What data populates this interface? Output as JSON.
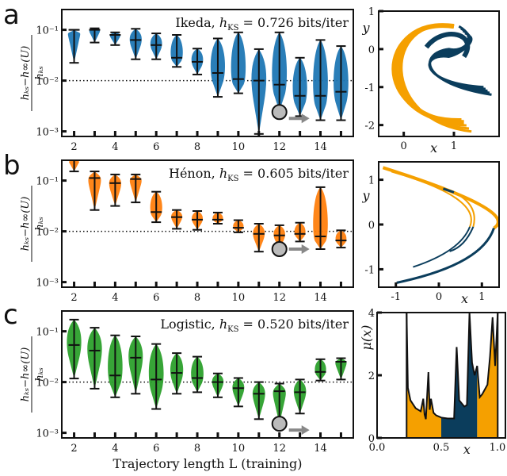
{
  "figure": {
    "panels": [
      "a",
      "b",
      "c"
    ],
    "colors": {
      "ikeda": "#1f77b4",
      "henon": "#ff7f0e",
      "logistic": "#2ca02c",
      "orange_region": "#f5a000",
      "navy_region": "#0b3d5c",
      "marker_gray": "#bbbbbb",
      "arrow_gray": "#888888"
    },
    "shared_xlabel": "Trajectory length L (training)",
    "ylabel": "(h_KS − h_∞(U)) / h_KS",
    "reference_line": 0.01,
    "highlighted_L": 12
  },
  "chart_data": [
    {
      "type": "violin",
      "panel": "a",
      "system": "Ikeda",
      "annotation_prefix": "Ikeda, ",
      "hks_label": "h",
      "hks_sub": "KS",
      "annotation_value": " = 0.726 bits/iter",
      "xlabel": "",
      "ylabel": "(h_KS − h_∞(U)) / h_KS",
      "yscale": "log",
      "ylim_log10": [
        -3.1,
        -0.6
      ],
      "yticks": [
        "10⁻³",
        "10⁻²",
        "10⁻¹"
      ],
      "xticks": [
        "2",
        "4",
        "6",
        "8",
        "10",
        "12",
        "14"
      ],
      "x": [
        2,
        3,
        4,
        5,
        6,
        7,
        8,
        9,
        10,
        11,
        12,
        13,
        14,
        15
      ],
      "median_log10": [
        -1.0,
        -1.0,
        -1.1,
        -1.2,
        -1.3,
        -1.55,
        -1.63,
        -1.85,
        -1.97,
        -2.0,
        -2.08,
        -2.3,
        -2.3,
        -2.22
      ],
      "min_log10": [
        -1.65,
        -1.25,
        -1.3,
        -1.58,
        -1.58,
        -1.73,
        -1.88,
        -2.32,
        -2.25,
        -3.05,
        -2.6,
        -2.7,
        -2.78,
        -2.78
      ],
      "max_log10": [
        -1.0,
        -0.97,
        -1.05,
        -0.98,
        -1.07,
        -1.1,
        -1.37,
        -1.17,
        -1.05,
        -1.38,
        -1.05,
        -1.55,
        -1.2,
        -1.32
      ],
      "highlight_log10": -2.62
    },
    {
      "type": "violin",
      "panel": "b",
      "system": "Hénon",
      "annotation_prefix": "Hénon, ",
      "hks_label": "h",
      "hks_sub": "KS",
      "annotation_value": " = 0.605 bits/iter",
      "xlabel": "",
      "ylabel": "(h_KS − h_∞(U)) / h_KS",
      "yscale": "log",
      "ylim_log10": [
        -3.1,
        -0.6
      ],
      "yticks": [
        "10⁻³",
        "10⁻²",
        "10⁻¹"
      ],
      "xticks": [
        "2",
        "4",
        "6",
        "8",
        "10",
        "12",
        "14"
      ],
      "x": [
        2,
        3,
        4,
        5,
        6,
        7,
        8,
        9,
        10,
        11,
        12,
        13,
        14,
        15
      ],
      "median_log10": [
        -0.6,
        -0.95,
        -1.05,
        -0.97,
        -1.62,
        -1.72,
        -1.77,
        -1.77,
        -1.93,
        -2.05,
        -2.08,
        -2.05,
        -2.1,
        -2.18
      ],
      "min_log10": [
        -0.82,
        -1.58,
        -1.5,
        -1.43,
        -1.82,
        -1.95,
        -1.97,
        -1.85,
        -2.02,
        -2.4,
        -2.35,
        -2.2,
        -2.35,
        -2.32
      ],
      "max_log10": [
        -0.6,
        -0.82,
        -0.88,
        -0.88,
        -1.22,
        -1.58,
        -1.6,
        -1.63,
        -1.78,
        -1.85,
        -1.88,
        -1.83,
        -1.13,
        -1.98
      ],
      "highlight_log10": -2.35
    },
    {
      "type": "violin",
      "panel": "c",
      "system": "Logistic",
      "annotation_prefix": "Logistic, ",
      "hks_label": "h",
      "hks_sub": "KS",
      "annotation_value": " = 0.520 bits/iter",
      "xlabel": "Trajectory length L (training)",
      "ylabel": "(h_KS − h_∞(U)) / h_KS",
      "yscale": "log",
      "ylim_log10": [
        -3.1,
        -0.6
      ],
      "yticks": [
        "10⁻³",
        "10⁻²",
        "10⁻¹"
      ],
      "xticks": [
        "2",
        "4",
        "6",
        "8",
        "10",
        "12",
        "14"
      ],
      "x": [
        2,
        3,
        4,
        5,
        6,
        7,
        8,
        9,
        10,
        11,
        12,
        13,
        14,
        15
      ],
      "median_log10": [
        -1.27,
        -1.38,
        -1.87,
        -1.52,
        -1.95,
        -1.82,
        -1.92,
        -2.0,
        -2.12,
        -2.23,
        -2.18,
        -2.2,
        -1.8,
        -1.6
      ],
      "min_log10": [
        -1.93,
        -2.13,
        -2.3,
        -2.23,
        -2.53,
        -2.23,
        -2.2,
        -2.3,
        -2.48,
        -2.73,
        -2.82,
        -2.62,
        -1.97,
        -1.95
      ],
      "max_log10": [
        -0.77,
        -0.93,
        -1.08,
        -1.1,
        -1.25,
        -1.43,
        -1.5,
        -1.83,
        -1.92,
        -2.0,
        -2.03,
        -1.95,
        -1.55,
        -1.53
      ],
      "highlight_log10": -2.82
    },
    {
      "type": "scatter",
      "panel": "a-inset",
      "title": "Ikeda attractor",
      "xlabel": "x",
      "ylabel": "y",
      "xticks": [
        "0",
        "1"
      ],
      "yticks": [
        "-2",
        "-1",
        "0",
        "1"
      ],
      "xlim": [
        -0.5,
        1.9
      ],
      "ylim": [
        -2.3,
        1.0
      ]
    },
    {
      "type": "scatter",
      "panel": "b-inset",
      "title": "Hénon attractor",
      "xlabel": "x",
      "ylabel": "y",
      "xticks": [
        "-1",
        "0",
        "1"
      ],
      "yticks": [
        "-1",
        "0",
        "1"
      ],
      "xlim": [
        -1.4,
        1.4
      ],
      "ylim": [
        -1.4,
        1.4
      ]
    },
    {
      "type": "area",
      "panel": "c-inset",
      "title": "Logistic invariant density",
      "xlabel": "x",
      "ylabel": "μ(x)",
      "xticks": [
        "0.0",
        "0.5",
        "1.0"
      ],
      "yticks": [
        "0",
        "2",
        "4"
      ],
      "xlim": [
        0.0,
        1.0
      ],
      "ylim": [
        0,
        4
      ],
      "x": [
        0.23,
        0.24,
        0.26,
        0.3,
        0.34,
        0.36,
        0.37,
        0.38,
        0.4,
        0.41,
        0.42,
        0.44,
        0.46,
        0.5,
        0.55,
        0.6,
        0.62,
        0.64,
        0.68,
        0.7,
        0.72,
        0.74,
        0.76,
        0.78,
        0.8,
        0.82,
        0.86,
        0.88,
        0.9,
        0.92,
        0.94
      ],
      "density": [
        4.0,
        1.6,
        1.2,
        0.95,
        0.85,
        1.25,
        0.75,
        0.6,
        2.1,
        0.9,
        1.25,
        0.8,
        0.72,
        0.65,
        0.62,
        0.62,
        2.9,
        1.2,
        1.0,
        1.05,
        4.0,
        2.4,
        2.0,
        2.3,
        1.3,
        1.4,
        1.7,
        2.6,
        3.85,
        2.3,
        4.0
      ],
      "partition_boundaries": [
        0.5,
        0.78
      ],
      "regions": [
        "orange",
        "navy",
        "orange"
      ]
    }
  ]
}
